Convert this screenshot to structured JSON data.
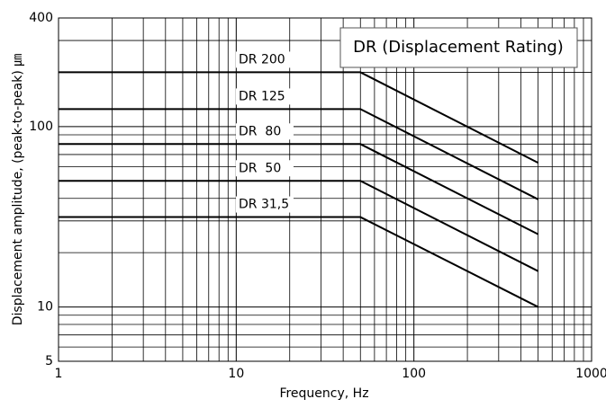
{
  "chart_data": {
    "type": "line",
    "annotation": "DR (Displacement Rating)",
    "x_label": "Frequency, Hz",
    "y_label": "Displacement amplitude, (peak-to-peak) ㎛",
    "log_x": true,
    "log_y": true,
    "grid": true,
    "minor_grid": true,
    "xlim": [
      1,
      1000
    ],
    "xticks": [
      1,
      10,
      100,
      1000
    ],
    "ylim": [
      5,
      400
    ],
    "yticks": [
      5,
      10,
      100,
      400
    ],
    "x": [
      1,
      50,
      500
    ],
    "series": [
      {
        "name": "DR 200",
        "color": "#000000",
        "values": [
          200,
          200,
          63
        ]
      },
      {
        "name": "DR 125",
        "color": "#000000",
        "values": [
          125,
          125,
          39.5
        ]
      },
      {
        "name": "DR  80",
        "color": "#000000",
        "values": [
          80,
          80,
          25.3
        ]
      },
      {
        "name": "DR  50",
        "color": "#000000",
        "values": [
          50,
          50,
          15.8
        ]
      },
      {
        "name": "DR 31,5",
        "color": "#000000",
        "values": [
          31.5,
          31.5,
          10
        ]
      }
    ]
  }
}
